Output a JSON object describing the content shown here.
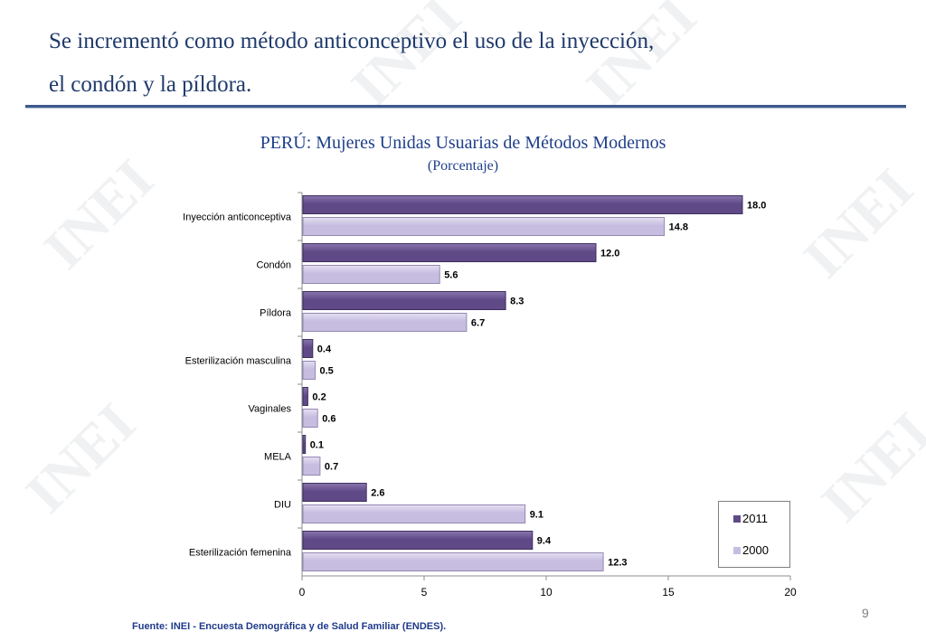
{
  "slide": {
    "heading_line_1": "Se incrementó como método anticonceptivo el uso de la inyección,",
    "heading_line_2": "el condón y la píldora.",
    "watermark_text": "INEI",
    "source": "Fuente: INEI - Encuesta Demográfica y de Salud Familiar (ENDES).",
    "page_number": "9"
  },
  "colors": {
    "series_2011": "#5f4a87",
    "series_2011_light": "#8a76ae",
    "series_2000": "#c6bde0",
    "series_2000_light": "#e4dff2",
    "heading": "#1f3a6b",
    "chart_title": "#1f3f8a",
    "rule": "#3d5a8a"
  },
  "chart_data": {
    "type": "bar",
    "orientation": "horizontal",
    "title": "PERÚ: Mujeres Unidas Usuarias de Métodos Modernos",
    "subtitle": "(Porcentaje)",
    "categories": [
      "Inyección anticonceptiva",
      "Condón",
      "Píldora",
      "Esterilización masculina",
      "Vaginales",
      "MELA",
      "DIU",
      "Esterilización femenina"
    ],
    "series": [
      {
        "name": "2011",
        "values": [
          18.0,
          12.0,
          8.3,
          0.4,
          0.2,
          0.1,
          2.6,
          9.4
        ]
      },
      {
        "name": "2000",
        "values": [
          14.8,
          5.6,
          6.7,
          0.5,
          0.6,
          0.7,
          9.1,
          12.3
        ]
      }
    ],
    "xlim": [
      0,
      20
    ],
    "xticks": [
      0,
      5,
      10,
      15,
      20
    ],
    "grid": false,
    "legend_position": "bottom-right",
    "data_labels": true,
    "label_decimals": 1
  }
}
